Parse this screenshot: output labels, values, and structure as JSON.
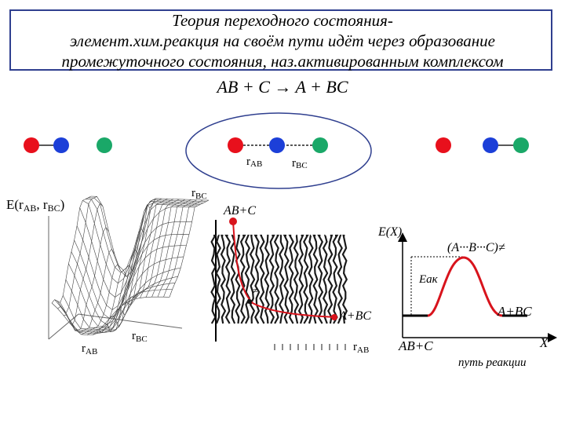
{
  "title": {
    "line1": "Теория переходного состояния-",
    "line2": "элемент.хим.реакция на своём пути идёт через образование",
    "line3": "промежуточного состояния, наз.активированным комплексом"
  },
  "equation": {
    "left": "AB + C",
    "right": "A + BC"
  },
  "molecules": {
    "atom_colors": {
      "A": "#e8101c",
      "B": "#1c3fd8",
      "C": "#1aa868"
    },
    "ellipse_color": "#2f3f8f",
    "r_ab": {
      "main": "r",
      "sub": "AB"
    },
    "r_bc": {
      "main": "r",
      "sub": "BC"
    }
  },
  "surface_plot": {
    "energy_label": {
      "main": "E(r",
      "sub1": "AB",
      "sep": ", r",
      "sub2": "BC",
      "end": ")"
    },
    "axis_x": {
      "main": "r",
      "sub": "AB"
    },
    "axis_y": {
      "main": "r",
      "sub": "BC"
    }
  },
  "contour_plot": {
    "axis_y": {
      "main": "r",
      "sub": "BC"
    },
    "axis_x": {
      "main": "r",
      "sub": "AB"
    },
    "start_label": "AB+C",
    "end_label": "A+BC",
    "saddle_mark": "≠",
    "path_color": "#d8131c"
  },
  "energy_profile": {
    "axis_y": "E(X)",
    "axis_x": "X",
    "axis_x_caption": "путь реакции",
    "peak_label": "(A···B···C)≠",
    "ea_label": "Eак",
    "left_label": "AB+C",
    "right_label": "A+BC",
    "curve_color": "#d8131c"
  }
}
